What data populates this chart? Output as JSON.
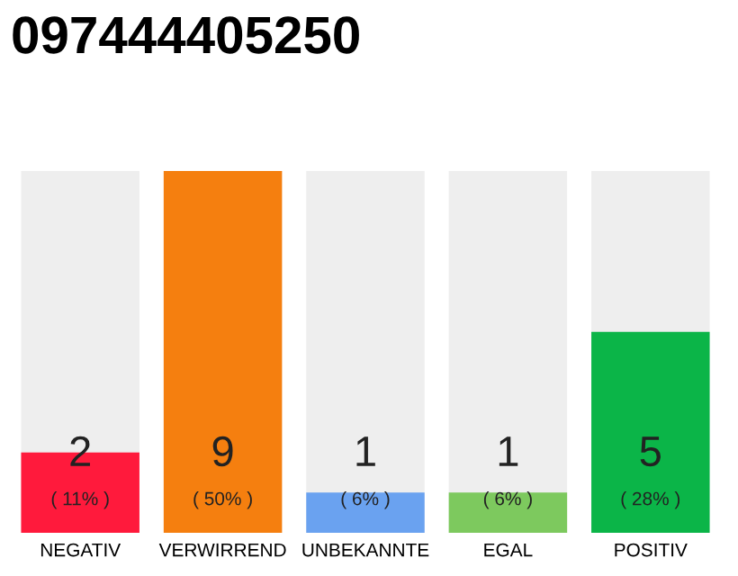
{
  "chart_data": {
    "type": "bar",
    "title": "097444405250",
    "data_labels": true,
    "categories": [
      "NEGATIV",
      "VERWIRREND",
      "UNBEKANNTE",
      "EGAL",
      "POSITIV"
    ],
    "values": [
      2,
      9,
      1,
      1,
      5
    ],
    "colors": [
      "#ff1a3c",
      "#f57f0f",
      "#6aa2f0",
      "#7dc95e",
      "#0bb548"
    ],
    "annotations": [
      "( 11% )",
      "( 50% )",
      "( 6% )",
      "( 6% )",
      "( 28% )"
    ],
    "grid": false,
    "legend": false,
    "tick_labels": "x"
  }
}
